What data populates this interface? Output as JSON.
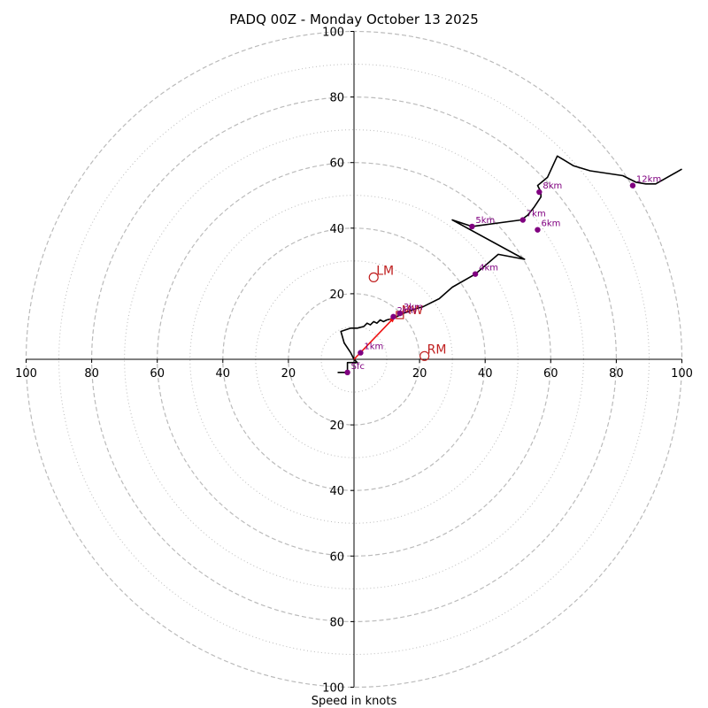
{
  "chart_data": {
    "type": "hodograph",
    "title": "PADQ 00Z - Monday October 13 2025",
    "xlabel": "Speed in knots",
    "range": [
      -100,
      100
    ],
    "ring_labels": [
      "20",
      "40",
      "60",
      "80",
      "100"
    ],
    "x_tick_labels": [
      "100",
      "80",
      "60",
      "40",
      "20",
      "20",
      "40",
      "60",
      "80",
      "100"
    ],
    "x_tick_values": [
      -100,
      -80,
      -60,
      -40,
      -20,
      20,
      40,
      60,
      80,
      100
    ],
    "y_tick_labels": [
      "100",
      "80",
      "60",
      "40",
      "20",
      "20",
      "40",
      "60",
      "80",
      "100"
    ],
    "y_tick_values": [
      100,
      80,
      60,
      40,
      20,
      -20,
      -40,
      -60,
      -80,
      -100
    ],
    "ring_dashed": [
      20,
      40,
      60,
      80,
      100
    ],
    "ring_dotted": [
      10,
      30,
      50,
      70,
      90
    ],
    "colors": {
      "trace": "#000000",
      "height": "#800080",
      "motion": "#c02020",
      "mean_wind": "#ee1111",
      "grid": "#bbbbbb"
    },
    "trace": [
      [
        -5,
        -4
      ],
      [
        -2,
        -4
      ],
      [
        -2,
        -1
      ],
      [
        1,
        -1
      ],
      [
        0,
        0
      ],
      [
        -1,
        2
      ],
      [
        -3,
        5
      ],
      [
        -4,
        8.5
      ],
      [
        -1,
        9.5
      ],
      [
        1,
        9.5
      ],
      [
        3,
        10
      ],
      [
        4,
        11
      ],
      [
        5,
        10.5
      ],
      [
        6,
        11.5
      ],
      [
        7,
        11
      ],
      [
        8,
        12
      ],
      [
        9,
        11.5
      ],
      [
        10,
        12
      ],
      [
        12,
        12.5
      ],
      [
        15,
        14
      ],
      [
        19,
        15.5
      ],
      [
        21,
        16
      ],
      [
        26,
        18.5
      ],
      [
        30,
        22
      ],
      [
        37,
        26
      ],
      [
        44,
        32
      ],
      [
        52,
        30.5
      ],
      [
        30,
        42.5
      ],
      [
        36,
        40.5
      ],
      [
        51,
        42.5
      ],
      [
        53,
        44
      ],
      [
        55,
        46.5
      ],
      [
        57,
        49.5
      ],
      [
        57,
        51
      ],
      [
        56,
        53
      ],
      [
        59,
        55.5
      ],
      [
        62,
        62
      ],
      [
        67,
        59
      ],
      [
        72,
        57.5
      ],
      [
        82,
        56
      ],
      [
        86,
        54
      ],
      [
        89,
        53.5
      ],
      [
        92,
        53.5
      ],
      [
        100,
        58
      ]
    ],
    "height_points": [
      {
        "label": "Sfc",
        "u": -2,
        "v": -4
      },
      {
        "label": "1km",
        "u": 2,
        "v": 2
      },
      {
        "label": "2km",
        "u": 12,
        "v": 13
      },
      {
        "label": "3km",
        "u": 14,
        "v": 14
      },
      {
        "label": "4km",
        "u": 37,
        "v": 26
      },
      {
        "label": "5km",
        "u": 36,
        "v": 40.5
      },
      {
        "label": "6km",
        "u": 56,
        "v": 39.5
      },
      {
        "label": "7km",
        "u": 51.5,
        "v": 42.5
      },
      {
        "label": "8km",
        "u": 56.5,
        "v": 51
      },
      {
        "label": "12km",
        "u": 85,
        "v": 53
      }
    ],
    "storm_motion": [
      {
        "label": "LM",
        "u": 6,
        "v": 25
      },
      {
        "label": "RM",
        "u": 21.5,
        "v": 1
      }
    ],
    "mean_wind": {
      "label": "MW",
      "u": 14,
      "v": 13.5
    },
    "mean_wind_vector": {
      "from": [
        0,
        0
      ],
      "to": [
        12.5,
        13
      ]
    }
  }
}
